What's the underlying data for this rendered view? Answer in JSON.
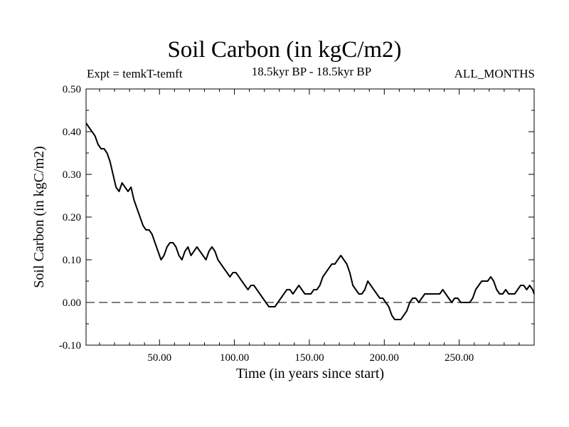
{
  "chart_data": {
    "type": "line",
    "title": "Soil Carbon (in kgC/m2)",
    "subtitle_left": "Expt = temkT-temft",
    "subtitle_center": "18.5kyr BP - 18.5kyr BP",
    "subtitle_right": "ALL_MONTHS",
    "xlabel": "Time (in years since start)",
    "ylabel": "Soil Carbon (in kgC/m2)",
    "xlim": [
      1,
      300
    ],
    "ylim": [
      -0.1,
      0.5
    ],
    "xticks": [
      50,
      100,
      150,
      200,
      250
    ],
    "xtick_labels": [
      "50.00",
      "100.00",
      "150.00",
      "200.00",
      "250.00"
    ],
    "yticks": [
      -0.1,
      0.0,
      0.1,
      0.2,
      0.3,
      0.4,
      0.5
    ],
    "ytick_labels": [
      "-0.10",
      "0.00",
      "0.10",
      "0.20",
      "0.30",
      "0.40",
      "0.50"
    ],
    "reference_line": {
      "y": 0.0,
      "style": "dashed"
    },
    "series": [
      {
        "name": "Soil Carbon",
        "x": [
          1,
          3,
          5,
          7,
          9,
          11,
          13,
          15,
          17,
          19,
          21,
          23,
          25,
          27,
          29,
          31,
          33,
          35,
          37,
          39,
          41,
          43,
          45,
          47,
          49,
          51,
          53,
          55,
          57,
          59,
          61,
          63,
          65,
          67,
          69,
          71,
          73,
          75,
          77,
          79,
          81,
          83,
          85,
          87,
          89,
          91,
          93,
          95,
          97,
          99,
          101,
          103,
          105,
          107,
          109,
          111,
          113,
          115,
          117,
          119,
          121,
          123,
          125,
          127,
          129,
          131,
          133,
          135,
          137,
          139,
          141,
          143,
          145,
          147,
          149,
          151,
          153,
          155,
          157,
          159,
          161,
          163,
          165,
          167,
          169,
          171,
          173,
          175,
          177,
          179,
          181,
          183,
          185,
          187,
          189,
          191,
          193,
          195,
          197,
          199,
          201,
          203,
          205,
          207,
          209,
          211,
          213,
          215,
          217,
          219,
          221,
          223,
          225,
          227,
          229,
          231,
          233,
          235,
          237,
          239,
          241,
          243,
          245,
          247,
          249,
          251,
          253,
          255,
          257,
          259,
          261,
          263,
          265,
          267,
          269,
          271,
          273,
          275,
          277,
          279,
          281,
          283,
          285,
          287,
          289,
          291,
          293,
          295,
          297,
          299,
          300
        ],
        "values": [
          0.42,
          0.41,
          0.4,
          0.39,
          0.37,
          0.36,
          0.36,
          0.35,
          0.33,
          0.3,
          0.27,
          0.26,
          0.28,
          0.27,
          0.26,
          0.27,
          0.24,
          0.22,
          0.2,
          0.18,
          0.17,
          0.17,
          0.16,
          0.14,
          0.12,
          0.1,
          0.11,
          0.13,
          0.14,
          0.14,
          0.13,
          0.11,
          0.1,
          0.12,
          0.13,
          0.11,
          0.12,
          0.13,
          0.12,
          0.11,
          0.1,
          0.12,
          0.13,
          0.12,
          0.1,
          0.09,
          0.08,
          0.07,
          0.06,
          0.07,
          0.07,
          0.06,
          0.05,
          0.04,
          0.03,
          0.04,
          0.04,
          0.03,
          0.02,
          0.01,
          0.0,
          -0.01,
          -0.01,
          -0.01,
          0.0,
          0.01,
          0.02,
          0.03,
          0.03,
          0.02,
          0.03,
          0.04,
          0.03,
          0.02,
          0.02,
          0.02,
          0.03,
          0.03,
          0.04,
          0.06,
          0.07,
          0.08,
          0.09,
          0.09,
          0.1,
          0.11,
          0.1,
          0.09,
          0.07,
          0.04,
          0.03,
          0.02,
          0.02,
          0.03,
          0.05,
          0.04,
          0.03,
          0.02,
          0.01,
          0.01,
          0.0,
          -0.01,
          -0.03,
          -0.04,
          -0.04,
          -0.04,
          -0.03,
          -0.02,
          0.0,
          0.01,
          0.01,
          0.0,
          0.01,
          0.02,
          0.02,
          0.02,
          0.02,
          0.02,
          0.02,
          0.03,
          0.02,
          0.01,
          0.0,
          0.01,
          0.01,
          0.0,
          0.0,
          0.0,
          0.0,
          0.01,
          0.03,
          0.04,
          0.05,
          0.05,
          0.05,
          0.06,
          0.05,
          0.03,
          0.02,
          0.02,
          0.03,
          0.02,
          0.02,
          0.02,
          0.03,
          0.04,
          0.04,
          0.03,
          0.04,
          0.03,
          0.02
        ]
      }
    ]
  }
}
